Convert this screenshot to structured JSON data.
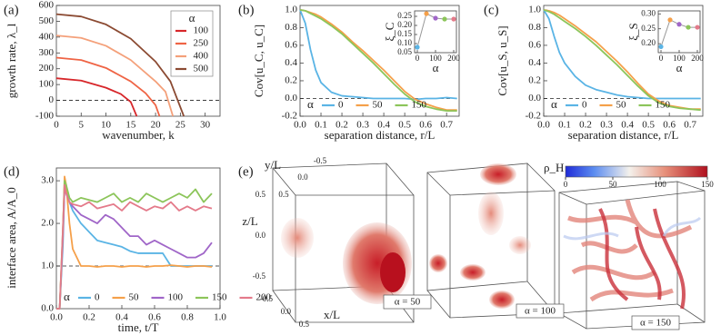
{
  "chart_data": [
    {
      "type": "line",
      "panel_label": "(a)",
      "x_label": "wavenumber, k",
      "y_label": "growth rate, λ_l",
      "xlim": [
        0,
        33
      ],
      "xticks": [
        0,
        5,
        10,
        15,
        20,
        25,
        30
      ],
      "ylim": [
        -100,
        600
      ],
      "yticks": [
        -100,
        0,
        100,
        200,
        300,
        400,
        500,
        600
      ],
      "hline": 0,
      "legend": "upper right",
      "legend_title": "α",
      "series": [
        {
          "name": "100",
          "color": "#d7262a",
          "x": [
            0,
            5,
            10,
            13,
            15,
            16.2
          ],
          "values": [
            140,
            125,
            80,
            40,
            -10,
            -100
          ]
        },
        {
          "name": "250",
          "color": "#ef6445",
          "x": [
            0,
            5,
            10,
            15,
            18,
            20,
            20.8
          ],
          "values": [
            270,
            255,
            205,
            120,
            45,
            -30,
            -100
          ]
        },
        {
          "name": "400",
          "color": "#f4a07a",
          "x": [
            0,
            5,
            10,
            15,
            20,
            22,
            23.5
          ],
          "values": [
            410,
            395,
            345,
            255,
            120,
            55,
            -100
          ]
        },
        {
          "name": "500",
          "color": "#8b4a32",
          "x": [
            0,
            5,
            10,
            15,
            20,
            23,
            25.7
          ],
          "values": [
            545,
            530,
            480,
            390,
            245,
            120,
            -100
          ]
        }
      ]
    },
    {
      "type": "line",
      "panel_label": "(b)",
      "x_label": "separation distance, r/L",
      "y_label": "Cov[u_C, u_C]",
      "xlim": [
        0,
        0.76
      ],
      "xticks": [
        {
          "value": 0,
          "label": "0.0"
        },
        0.1,
        0.2,
        0.3,
        0.4,
        0.5,
        0.6,
        0.7
      ],
      "ylim": [
        -0.2,
        1.05
      ],
      "yticks": [
        -0.2,
        {
          "value": 0,
          "label": "0.0"
        },
        0.2,
        0.4,
        0.6,
        0.8,
        {
          "value": 1,
          "label": "1.0"
        }
      ],
      "hline": 0,
      "legend": "lower left",
      "legend_title": "α",
      "x": [
        0,
        0.025,
        0.05,
        0.075,
        0.1,
        0.15,
        0.2,
        0.25,
        0.3,
        0.35,
        0.4,
        0.45,
        0.5,
        0.55,
        0.6,
        0.65,
        0.7,
        0.75
      ],
      "series": [
        {
          "name": "0",
          "color": "#5ab4e5",
          "values": [
            1,
            0.85,
            0.55,
            0.32,
            0.18,
            0.07,
            0.03,
            0.02,
            0.01,
            0,
            0,
            0,
            0,
            -0.01,
            0,
            0,
            0.01,
            0
          ]
        },
        {
          "name": "50",
          "color": "#f5a04a",
          "values": [
            1,
            0.99,
            0.97,
            0.95,
            0.92,
            0.84,
            0.75,
            0.64,
            0.54,
            0.43,
            0.32,
            0.2,
            0.08,
            -0.01,
            -0.06,
            -0.1,
            -0.13,
            -0.13
          ]
        },
        {
          "name": "150",
          "color": "#8cc55a",
          "values": [
            1,
            0.99,
            0.96,
            0.93,
            0.9,
            0.82,
            0.73,
            0.62,
            0.51,
            0.4,
            0.28,
            0.16,
            0.05,
            -0.04,
            -0.09,
            -0.12,
            -0.14,
            -0.14
          ]
        }
      ],
      "inset": {
        "x_label": "α",
        "y_label": "ξ_C",
        "xlim": [
          -15,
          215
        ],
        "xticks": [
          0,
          100,
          200
        ],
        "ylim": [
          0.05,
          0.28
        ],
        "yticks": [
          0.05,
          {
            "value": 0.1,
            "label": "0.10"
          },
          0.15,
          {
            "value": 0.2,
            "label": "0.20"
          },
          0.25
        ],
        "x": [
          0,
          50,
          100,
          150,
          200
        ],
        "values": [
          0.08,
          0.265,
          0.24,
          0.235,
          0.235
        ],
        "colors": [
          "#5ab4e5",
          "#f5a04a",
          "#a066c8",
          "#8cc55a",
          "#e47a8a"
        ],
        "line_color": "#999"
      }
    },
    {
      "type": "line",
      "panel_label": "(c)",
      "x_label": "separation distance, r/L",
      "y_label": "Cov[u_S, u_S]",
      "xlim": [
        0,
        0.76
      ],
      "xticks": [
        {
          "value": 0,
          "label": "0.0"
        },
        0.1,
        0.2,
        0.3,
        0.4,
        0.5,
        0.6,
        0.7
      ],
      "ylim": [
        -0.2,
        1.05
      ],
      "yticks": [
        -0.2,
        {
          "value": 0,
          "label": "0.0"
        },
        0.2,
        0.4,
        0.6,
        0.8,
        {
          "value": 1,
          "label": "1.0"
        }
      ],
      "hline": 0,
      "legend": "lower left",
      "legend_title": "α",
      "x": [
        0,
        0.025,
        0.05,
        0.075,
        0.1,
        0.15,
        0.2,
        0.25,
        0.3,
        0.35,
        0.4,
        0.45,
        0.5,
        0.55,
        0.6,
        0.65,
        0.7,
        0.75
      ],
      "series": [
        {
          "name": "0",
          "color": "#5ab4e5",
          "values": [
            1,
            0.9,
            0.7,
            0.52,
            0.4,
            0.25,
            0.15,
            0.1,
            0.07,
            0.04,
            0.02,
            0.01,
            0,
            0,
            0,
            0,
            0,
            0
          ]
        },
        {
          "name": "50",
          "color": "#f5a04a",
          "values": [
            1,
            0.99,
            0.97,
            0.94,
            0.9,
            0.82,
            0.73,
            0.64,
            0.53,
            0.42,
            0.3,
            0.17,
            0.05,
            -0.03,
            -0.08,
            -0.1,
            -0.12,
            -0.12
          ]
        },
        {
          "name": "150",
          "color": "#8cc55a",
          "values": [
            1,
            0.98,
            0.95,
            0.91,
            0.87,
            0.79,
            0.7,
            0.6,
            0.49,
            0.38,
            0.26,
            0.14,
            0.03,
            -0.05,
            -0.09,
            -0.11,
            -0.12,
            -0.13
          ]
        }
      ],
      "inset": {
        "x_label": "α",
        "y_label": "ξ_S",
        "xlim": [
          -15,
          215
        ],
        "xticks": [
          0,
          100,
          200
        ],
        "ylim": [
          0.17,
          0.31
        ],
        "yticks": [
          {
            "value": 0.2,
            "label": "0.20"
          },
          0.25,
          {
            "value": 0.3,
            "label": "0.30"
          }
        ],
        "x": [
          0,
          50,
          100,
          150,
          200
        ],
        "values": [
          0.19,
          0.28,
          0.265,
          0.255,
          0.255
        ],
        "colors": [
          "#5ab4e5",
          "#f5a04a",
          "#a066c8",
          "#8cc55a",
          "#e47a8a"
        ],
        "line_color": "#999"
      }
    },
    {
      "type": "line",
      "panel_label": "(d)",
      "x_label": "time, t/T",
      "y_label": "interface area, A/A_0",
      "xlim": [
        0,
        1
      ],
      "xticks": [
        {
          "value": 0,
          "label": "0.0"
        },
        0.2,
        0.4,
        0.6,
        0.8,
        {
          "value": 1,
          "label": "1.0"
        }
      ],
      "ylim": [
        0,
        3.3
      ],
      "yticks": [
        {
          "value": 0,
          "label": "0.0"
        },
        {
          "value": 1,
          "label": "1.0"
        },
        {
          "value": 2,
          "label": "2.0"
        },
        {
          "value": 3,
          "label": "3.0"
        }
      ],
      "hline": 1,
      "legend": "lower left",
      "legend_title": "α",
      "x": [
        0,
        0.02,
        0.04,
        0.05,
        0.06,
        0.08,
        0.1,
        0.15,
        0.2,
        0.25,
        0.3,
        0.35,
        0.4,
        0.45,
        0.5,
        0.55,
        0.6,
        0.65,
        0.7,
        0.75,
        0.8,
        0.85,
        0.9,
        0.95
      ],
      "series": [
        {
          "name": "0",
          "color": "#5ab4e5",
          "values": [
            0,
            0,
            1.5,
            2.9,
            2.8,
            2.5,
            2.3,
            2.0,
            1.8,
            1.6,
            1.55,
            1.5,
            1.45,
            1.35,
            1.3,
            1.3,
            1.3,
            1.3,
            1.0,
            1.0,
            1.0,
            1.0,
            1.0,
            1.0
          ]
        },
        {
          "name": "50",
          "color": "#f5a04a",
          "values": [
            0,
            0,
            1.8,
            3.1,
            2.9,
            2.0,
            1.4,
            1.0,
            1.0,
            0.98,
            1.0,
            1.0,
            0.98,
            1.0,
            1.0,
            0.98,
            1.0,
            1.0,
            1.02,
            1.0,
            0.98,
            1.0,
            1.0,
            0.98
          ]
        },
        {
          "name": "100",
          "color": "#a066c8",
          "values": [
            0,
            0,
            1.7,
            2.8,
            2.7,
            2.5,
            2.4,
            2.2,
            2.1,
            2.0,
            2.2,
            2.1,
            1.9,
            1.7,
            1.7,
            1.5,
            1.6,
            1.5,
            1.4,
            1.3,
            1.2,
            1.2,
            1.3,
            1.55
          ]
        },
        {
          "name": "150",
          "color": "#8cc55a",
          "values": [
            0,
            0,
            1.9,
            3.0,
            2.9,
            2.6,
            2.5,
            2.6,
            2.55,
            2.5,
            2.6,
            2.7,
            2.5,
            2.6,
            2.5,
            2.7,
            2.6,
            2.5,
            2.6,
            2.7,
            2.6,
            2.8,
            2.5,
            2.7
          ]
        },
        {
          "name": "200",
          "color": "#e47a8a",
          "values": [
            0,
            0,
            1.9,
            2.9,
            2.7,
            2.5,
            2.45,
            2.4,
            2.5,
            2.35,
            2.4,
            2.45,
            2.3,
            2.5,
            2.4,
            2.3,
            2.4,
            2.35,
            2.5,
            2.3,
            2.4,
            2.3,
            2.4,
            2.35
          ]
        }
      ]
    }
  ],
  "panel_e": {
    "panel_label": "(e)",
    "colorbar": {
      "title": "ρ_H",
      "lim": [
        0,
        150
      ],
      "ticks": [
        0,
        50,
        100,
        150
      ]
    },
    "axes": {
      "y_label": "y/L",
      "z_label": "z/L",
      "x_label": "x/L",
      "y_ticks": [
        "0.5",
        "0.0",
        "-0.5"
      ],
      "z_ticks": [
        "0.5",
        "0.0",
        "-0.5"
      ],
      "x_ticks": [
        "-0.5",
        "0.0",
        "0.5"
      ]
    },
    "boxes": [
      {
        "label": "α = 50"
      },
      {
        "label": "α = 100"
      },
      {
        "label": "α = 150"
      }
    ]
  }
}
